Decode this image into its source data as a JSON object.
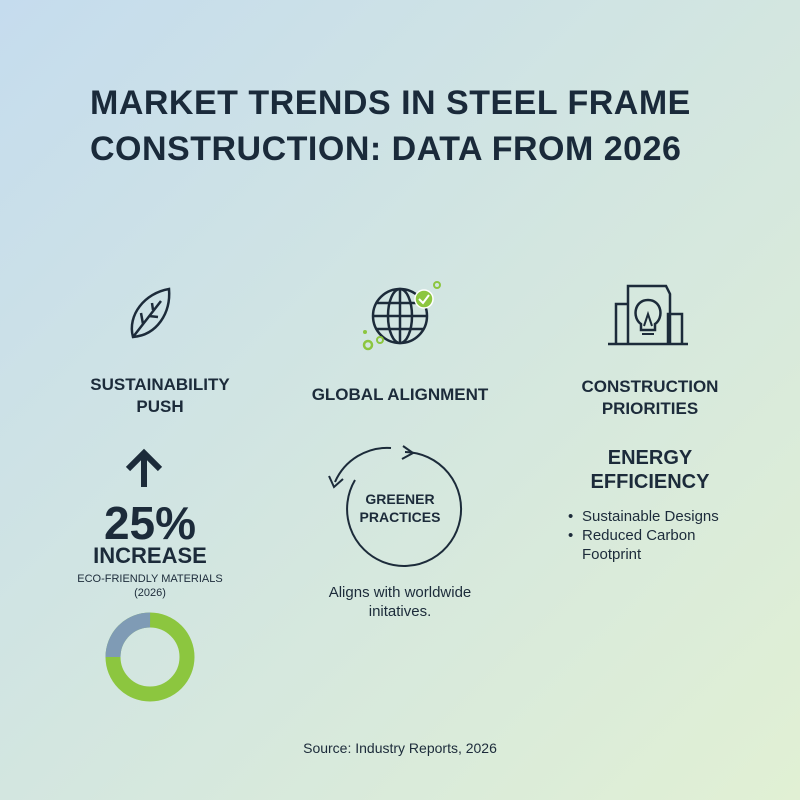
{
  "header": {
    "title_lines": [
      "MARKET TRENDS IN STEEL FRAME",
      "CONSTRUCTION: DATA FROM 2026"
    ]
  },
  "columns": [
    {
      "heading": "SUSTAINABILITY PUSH",
      "stat": {
        "value": 25,
        "label": "25%"
      },
      "stat_caption": "INCREASE",
      "note": "ECO-FRIENDLY MATERIALS (2026)"
    },
    {
      "heading": "GLOBAL ALIGNMENT",
      "cycle_label": "GREENER PRACTICES",
      "note": "Aligns with worldwide initatives."
    },
    {
      "heading": "CONSTRUCTION PRIORITIES",
      "subheading": "ENERGY EFFICIENCY",
      "bullets": [
        "Sustainable Designs",
        "Reduced Carbon Footprint"
      ]
    }
  ],
  "footer": {
    "source": "Source: Industry Reports, 2026"
  }
}
